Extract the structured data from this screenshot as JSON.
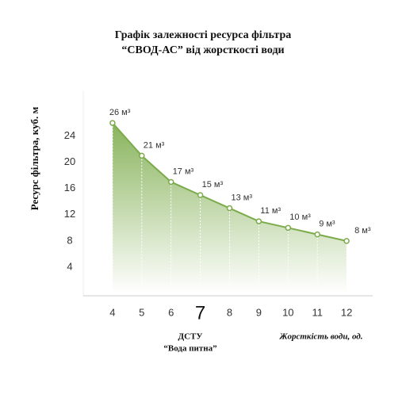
{
  "chart_data": {
    "type": "area-line",
    "title": [
      "Графік залежності ресурса фільтра",
      "“СВОД-АС” від жорсткості води"
    ],
    "y_label": "Ресурс фільтра, куб. м",
    "x_label": "Жорсткість води, од.",
    "annotation": [
      "ДСТУ",
      "“Вода питна”"
    ],
    "x": [
      4,
      5,
      6,
      7,
      8,
      9,
      10,
      11,
      12
    ],
    "values": [
      26,
      21,
      17,
      15,
      13,
      11,
      10,
      9,
      8
    ],
    "value_labels": [
      "26 м³",
      "21 м³",
      "17 м³",
      "15 м³",
      "13 м³",
      "11 м³",
      "10 м³",
      "9 м³",
      "8 м³"
    ],
    "color": "#7bab4a",
    "xlim": [
      3,
      13
    ],
    "xticks": [
      4,
      5,
      6,
      7,
      8,
      9,
      10,
      11,
      12
    ],
    "highlight_xtick": 7,
    "ylim": [
      0,
      30
    ],
    "yticks": [
      4,
      8,
      12,
      16,
      20,
      24
    ]
  }
}
